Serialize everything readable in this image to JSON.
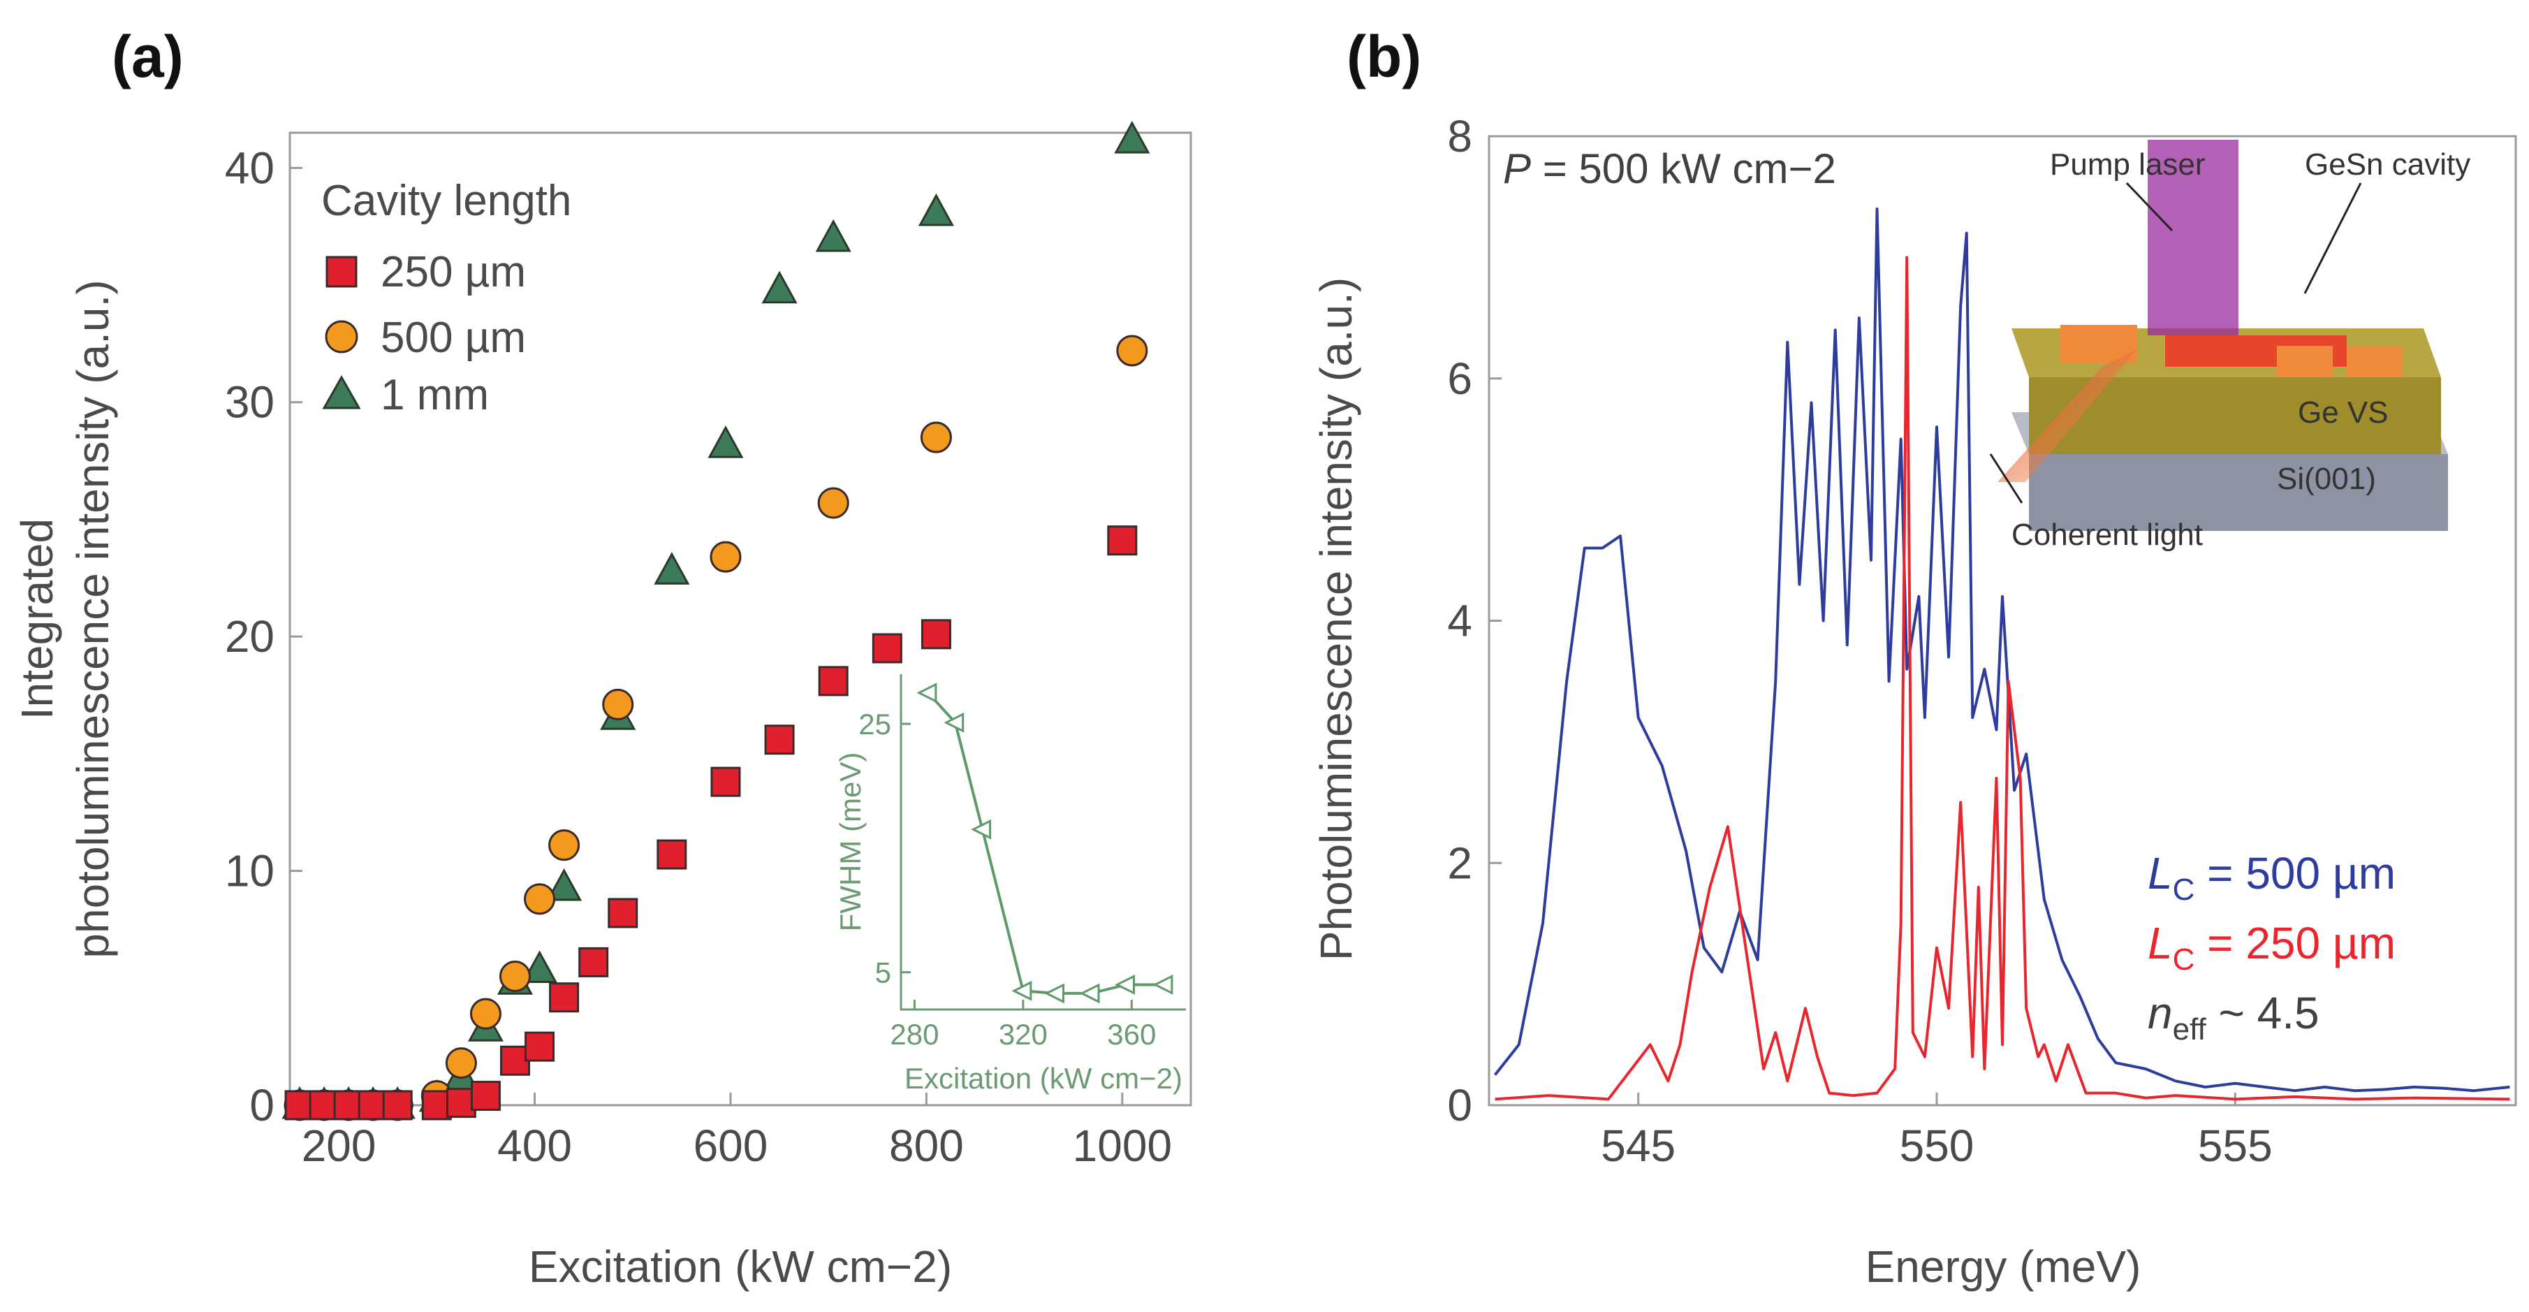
{
  "panels": {
    "a": "(a)",
    "b": "(b)"
  },
  "chart_data": [
    {
      "type": "scatter",
      "panel": "(a)",
      "xlabel": "Excitation (kW cm−2)",
      "ylabel_line1": "Integrated",
      "ylabel_line2": "photoluminescence intensity (a.u.)",
      "xlim": [
        150,
        1070
      ],
      "ylim": [
        0,
        41.5
      ],
      "x_ticks": [
        "200",
        "400",
        "600",
        "800",
        "1000"
      ],
      "x_tick_values": [
        200,
        400,
        600,
        800,
        1000
      ],
      "y_ticks": [
        "0",
        "10",
        "20",
        "30",
        "40"
      ],
      "y_tick_values": [
        0,
        10,
        20,
        30,
        40
      ],
      "legend_title": "Cavity length",
      "series": [
        {
          "name": "250 µm",
          "marker": "square",
          "color": "#e0202c",
          "x": [
            160,
            185,
            210,
            235,
            260,
            300,
            325,
            350,
            380,
            405,
            430,
            460,
            490,
            540,
            595,
            650,
            705,
            760,
            810,
            1000
          ],
          "y": [
            0,
            0,
            0,
            0,
            0,
            0,
            0.1,
            0.4,
            1.9,
            2.5,
            4.6,
            6.1,
            8.2,
            10.7,
            13.8,
            15.6,
            18.1,
            19.5,
            20.1,
            24.1
          ]
        },
        {
          "name": "500 µm",
          "marker": "circle",
          "color": "#f39a1e",
          "x": [
            160,
            185,
            210,
            235,
            260,
            300,
            325,
            350,
            380,
            405,
            430,
            485,
            595,
            705,
            810,
            1010
          ],
          "y": [
            0,
            0,
            0,
            0,
            0,
            0.4,
            1.8,
            3.9,
            5.5,
            8.8,
            11.1,
            17.1,
            23.4,
            25.7,
            28.5,
            32.2
          ]
        },
        {
          "name": "1 mm",
          "marker": "triangle",
          "color": "#3d7a57",
          "x": [
            160,
            185,
            210,
            235,
            260,
            300,
            325,
            350,
            380,
            405,
            430,
            485,
            540,
            595,
            650,
            705,
            810,
            1010
          ],
          "y": [
            0,
            0,
            0,
            0,
            0,
            0.3,
            1.2,
            3.3,
            5.3,
            5.8,
            9.3,
            16.6,
            22.8,
            28.2,
            34.8,
            37.0,
            38.1,
            41.2
          ]
        }
      ],
      "inset": {
        "type": "line",
        "xlabel": "Excitation (kW cm−2)",
        "ylabel": "FWHM (meV)",
        "xlim": [
          275,
          380
        ],
        "ylim": [
          2,
          29
        ],
        "x_ticks": [
          "280",
          "320",
          "360"
        ],
        "x_tick_values": [
          280,
          320,
          360
        ],
        "y_ticks": [
          "5",
          "25"
        ],
        "y_tick_values": [
          5,
          25
        ],
        "color": "#5f9a6a",
        "x": [
          285,
          295,
          305,
          320,
          332,
          345,
          358,
          372
        ],
        "y": [
          27.5,
          25.1,
          16.5,
          3.5,
          3.3,
          3.3,
          4.0,
          4.0
        ]
      }
    },
    {
      "type": "line",
      "panel": "(b)",
      "xlabel": "Energy (meV)",
      "ylabel": "Photoluminescence intensity (a.u.)",
      "xlim": [
        542.5,
        559.7
      ],
      "ylim": [
        0,
        8
      ],
      "x_ticks": [
        "545",
        "550",
        "555"
      ],
      "x_tick_values": [
        545,
        550,
        555
      ],
      "y_ticks": [
        "0",
        "2",
        "4",
        "6",
        "8"
      ],
      "y_tick_values": [
        0,
        2,
        4,
        6,
        8
      ],
      "series": [
        {
          "name": "L_C = 500 µm",
          "color": "#2e3d9c",
          "x": [
            542.6,
            543.0,
            543.4,
            543.8,
            544.1,
            544.4,
            544.7,
            545.0,
            545.4,
            545.8,
            546.1,
            546.4,
            546.7,
            547.0,
            547.3,
            547.5,
            547.7,
            547.9,
            548.1,
            548.3,
            548.5,
            548.7,
            548.9,
            549.0,
            549.2,
            549.4,
            549.5,
            549.7,
            549.8,
            550.0,
            550.2,
            550.4,
            550.5,
            550.6,
            550.8,
            551.0,
            551.1,
            551.3,
            551.5,
            551.8,
            552.1,
            552.4,
            552.7,
            553.0,
            553.5,
            554.0,
            554.5,
            555.0,
            555.5,
            556.0,
            556.5,
            557.0,
            557.5,
            558.0,
            558.5,
            559.0,
            559.6
          ],
          "y": [
            0.25,
            0.5,
            1.5,
            3.5,
            4.6,
            4.6,
            4.7,
            3.2,
            2.8,
            2.1,
            1.3,
            1.1,
            1.6,
            1.2,
            3.5,
            6.3,
            4.3,
            5.8,
            4.0,
            6.4,
            3.8,
            6.5,
            4.5,
            7.4,
            3.5,
            5.5,
            3.6,
            4.2,
            3.2,
            5.6,
            3.7,
            6.6,
            7.2,
            3.2,
            3.6,
            3.1,
            4.2,
            2.6,
            2.9,
            1.7,
            1.2,
            0.9,
            0.55,
            0.35,
            0.3,
            0.2,
            0.15,
            0.18,
            0.15,
            0.12,
            0.15,
            0.12,
            0.13,
            0.15,
            0.14,
            0.12,
            0.15
          ]
        },
        {
          "name": "L_C = 250 µm",
          "color": "#e8262d",
          "x": [
            542.6,
            543.5,
            544.5,
            545.2,
            545.5,
            545.7,
            545.9,
            546.2,
            546.5,
            546.8,
            547.1,
            547.3,
            547.5,
            547.8,
            548.0,
            548.2,
            548.6,
            549.0,
            549.3,
            549.4,
            549.5,
            549.6,
            549.8,
            550.0,
            550.2,
            550.4,
            550.6,
            550.7,
            550.8,
            551.0,
            551.1,
            551.2,
            551.4,
            551.5,
            551.7,
            551.8,
            552.0,
            552.2,
            552.5,
            553.0,
            553.5,
            554.0,
            555.0,
            556.0,
            557.0,
            558.0,
            559.6
          ],
          "y": [
            0.05,
            0.08,
            0.05,
            0.5,
            0.2,
            0.5,
            1.1,
            1.8,
            2.3,
            1.3,
            0.3,
            0.6,
            0.2,
            0.8,
            0.4,
            0.1,
            0.08,
            0.1,
            0.3,
            1.5,
            7.0,
            0.6,
            0.4,
            1.3,
            0.8,
            2.5,
            0.4,
            1.8,
            0.3,
            2.7,
            0.5,
            3.5,
            2.7,
            0.8,
            0.4,
            0.5,
            0.2,
            0.5,
            0.1,
            0.1,
            0.06,
            0.08,
            0.05,
            0.07,
            0.05,
            0.06,
            0.05
          ]
        }
      ],
      "legend": {
        "lc500": {
          "prefix": "L",
          "sub": "C",
          "rest": " = 500 µm"
        },
        "lc250": {
          "prefix": "L",
          "sub": "C",
          "rest": " = 250 µm"
        },
        "neff": {
          "prefix": "n",
          "sub": "eff",
          "rest": " ~ 4.5"
        }
      },
      "annotation": {
        "italic": "P",
        "rest": " = 500 kW cm−2"
      },
      "schematic_labels": [
        "Pump laser",
        "GeSn cavity",
        "Ge VS",
        "Si(001)",
        "Coherent light"
      ]
    }
  ]
}
